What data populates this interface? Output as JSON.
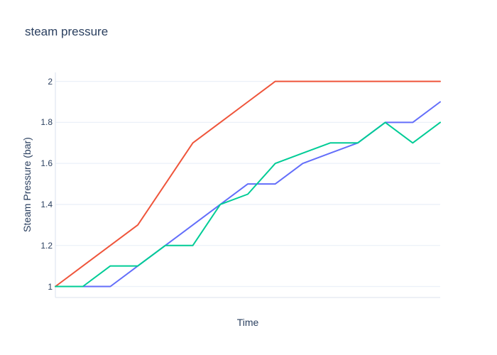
{
  "chart_data": {
    "type": "line",
    "title": "steam pressure",
    "xlabel": "Time",
    "ylabel": "Steam Pressure (bar)",
    "legend": "none",
    "grid": "horizontal",
    "num_points": 15,
    "x_index": [
      0,
      1,
      2,
      3,
      4,
      5,
      6,
      7,
      8,
      9,
      10,
      11,
      12,
      13,
      14
    ],
    "x_tick_labels": [],
    "yticks": [
      1,
      1.2,
      1.4,
      1.6,
      1.8,
      2
    ],
    "ytick_labels": [
      "1",
      "1.2",
      "1.4",
      "1.6",
      "1.8",
      "2"
    ],
    "ylim": [
      0.95,
      2.05
    ],
    "series": [
      {
        "name": "trace-0",
        "color": "#636EFA",
        "values": [
          1.0,
          1.0,
          1.0,
          1.1,
          1.2,
          1.3,
          1.4,
          1.5,
          1.5,
          1.6,
          1.65,
          1.7,
          1.8,
          1.8,
          1.9
        ]
      },
      {
        "name": "trace-1",
        "color": "#EF553B",
        "values": [
          1.0,
          1.1,
          1.2,
          1.3,
          1.5,
          1.7,
          1.8,
          1.9,
          2.0,
          2.0,
          2.0,
          2.0,
          2.0,
          2.0,
          2.0
        ]
      },
      {
        "name": "trace-2",
        "color": "#00CC96",
        "values": [
          1.0,
          1.0,
          1.1,
          1.1,
          1.2,
          1.2,
          1.4,
          1.45,
          1.6,
          1.65,
          1.7,
          1.7,
          1.8,
          1.7,
          1.8
        ]
      }
    ],
    "colors": {
      "text": "#2a3f5f",
      "grid": "#ebf0f8",
      "axis_line": "#e2e8f1",
      "background": "#ffffff"
    }
  }
}
